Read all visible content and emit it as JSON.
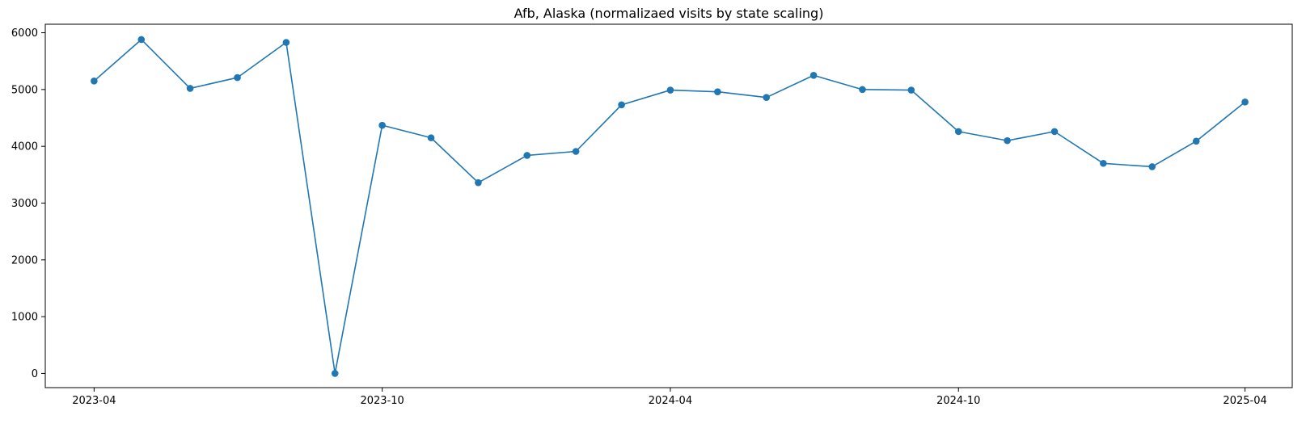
{
  "chart_data": {
    "type": "line",
    "title": "Afb, Alaska (normalizaed visits by state scaling)",
    "xlabel": "",
    "ylabel": "",
    "x_axis_type": "date",
    "xlim": [
      "2023-03-01",
      "2025-05-01"
    ],
    "ylim": [
      -250,
      6150
    ],
    "x_ticks": [
      "2023-04-01",
      "2023-10-01",
      "2024-04-01",
      "2024-10-01",
      "2025-04-01"
    ],
    "x_tick_labels": [
      "2023-04",
      "2023-10",
      "2024-04",
      "2024-10",
      "2025-04"
    ],
    "y_ticks": [
      0,
      1000,
      2000,
      3000,
      4000,
      5000,
      6000
    ],
    "y_tick_labels": [
      "0",
      "1000",
      "2000",
      "3000",
      "4000",
      "5000",
      "6000"
    ],
    "grid": false,
    "legend": "none",
    "series": [
      {
        "color": "#1f77b4",
        "marker": "circle",
        "x": [
          "2023-04-01",
          "2023-05-01",
          "2023-06-01",
          "2023-07-01",
          "2023-08-01",
          "2023-09-01",
          "2023-10-01",
          "2023-11-01",
          "2023-12-01",
          "2024-01-01",
          "2024-02-01",
          "2024-03-01",
          "2024-04-01",
          "2024-05-01",
          "2024-06-01",
          "2024-07-01",
          "2024-08-01",
          "2024-09-01",
          "2024-10-01",
          "2024-11-01",
          "2024-12-01",
          "2025-01-01",
          "2025-02-01",
          "2025-03-01",
          "2025-04-01"
        ],
        "values": [
          5150,
          5880,
          5020,
          5210,
          5830,
          0,
          4370,
          4150,
          3360,
          3840,
          3910,
          4730,
          4990,
          4960,
          4860,
          5250,
          5000,
          4990,
          4260,
          4100,
          4260,
          3700,
          3640,
          4090,
          4780
        ]
      }
    ]
  }
}
